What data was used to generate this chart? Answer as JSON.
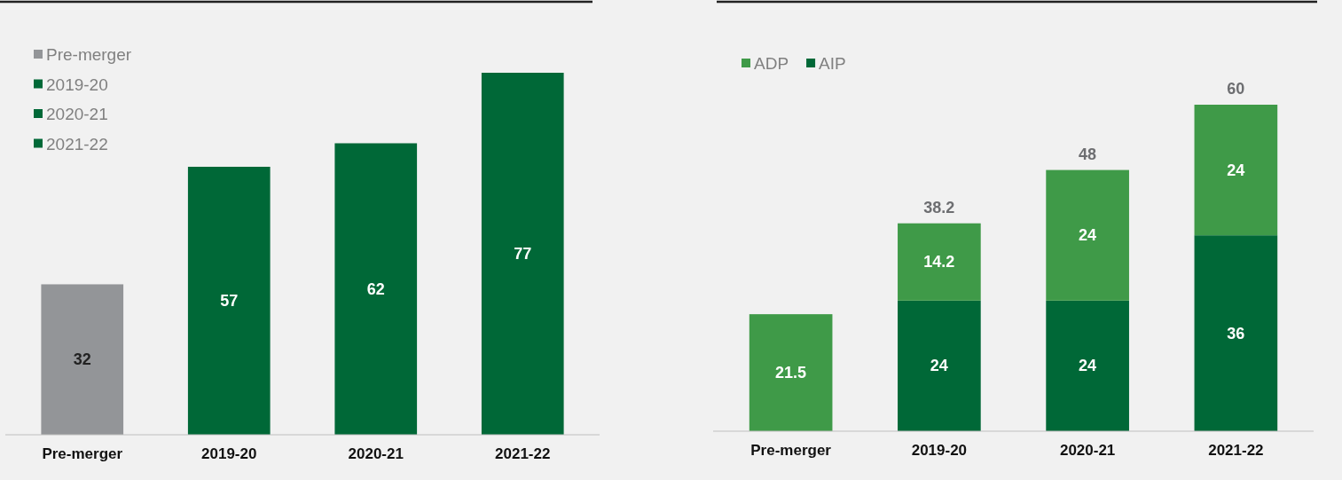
{
  "chart_data": [
    {
      "type": "bar",
      "stacked": true,
      "categories": [
        "Pre-merger",
        "2019-20",
        "2020-21",
        "2021-22"
      ],
      "series": [
        {
          "name": "Pre-merger",
          "color": "#939598",
          "values": [
            32,
            null,
            null,
            null
          ]
        },
        {
          "name": "2019-20",
          "color": "#006837",
          "values": [
            null,
            57,
            null,
            null
          ]
        },
        {
          "name": "2020-21",
          "color": "#006837",
          "values": [
            null,
            null,
            62,
            null
          ]
        },
        {
          "name": "2021-22",
          "color": "#006837",
          "values": [
            null,
            null,
            null,
            77
          ]
        }
      ],
      "data_labels": true,
      "legend": "top left"
    },
    {
      "type": "bar",
      "stacked": true,
      "categories": [
        "Pre-merger",
        "2019-20",
        "2020-21",
        "2021-22"
      ],
      "series": [
        {
          "name": "AIP",
          "color": "#006837",
          "values": [
            null,
            24,
            24,
            36
          ]
        },
        {
          "name": "ADP",
          "color": "#3f9a48",
          "values": [
            21.5,
            14.2,
            24,
            24
          ]
        }
      ],
      "totals": [
        null,
        "38.2",
        "48",
        "60"
      ],
      "data_labels": true,
      "legend": "top left"
    }
  ]
}
